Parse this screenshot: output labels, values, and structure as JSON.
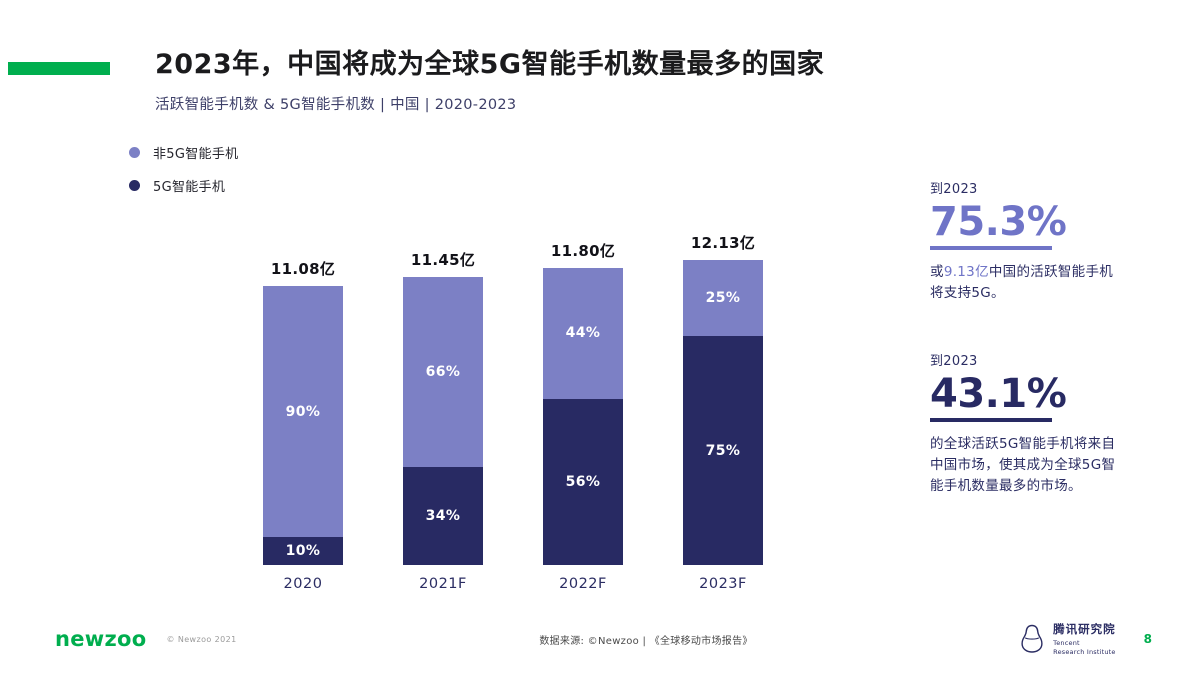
{
  "colors": {
    "green": "#00ae4e",
    "light_purple": "#7c80c5",
    "dark_navy": "#282a63",
    "stat_purple": "#6f74c7"
  },
  "header": {
    "title": "2023年，中国将成为全球5G智能手机数量最多的国家",
    "subtitle": "活跃智能手机数 & 5G智能手机数 | 中国 | 2020-2023"
  },
  "legend": [
    {
      "label": "非5G智能手机",
      "color": "#7c80c5"
    },
    {
      "label": "5G智能手机",
      "color": "#282a63"
    }
  ],
  "chart_data": {
    "type": "bar",
    "stacked": true,
    "title": "2023年，中国将成为全球5G智能手机数量最多的国家",
    "subtitle": "活跃智能手机数 & 5G智能手机数 | 中国 | 2020-2023",
    "categories": [
      "2020",
      "2021F",
      "2022F",
      "2023F"
    ],
    "totals": [
      11.08,
      11.45,
      11.8,
      12.13
    ],
    "total_labels": [
      "11.08亿",
      "11.45亿",
      "11.80亿",
      "12.13亿"
    ],
    "value_unit": "亿",
    "ylim": [
      0,
      12.13
    ],
    "legend_position": "top-left",
    "grid": false,
    "series": [
      {
        "name": "非5G智能手机",
        "color": "#7c80c5",
        "position": "top",
        "values_pct": [
          90,
          66,
          44,
          25
        ]
      },
      {
        "name": "5G智能手机",
        "color": "#282a63",
        "position": "bottom",
        "values_pct": [
          10,
          34,
          56,
          75
        ]
      }
    ]
  },
  "stats": [
    {
      "period": "到2023",
      "value": "75.3%",
      "color": "#6f74c7",
      "desc_prefix": "或",
      "desc_highlight": "9.13亿",
      "desc_rest": "中国的活跃智能手机将支持5G。"
    },
    {
      "period": "到2023",
      "value": "43.1%",
      "color": "#282a63",
      "desc": "的全球活跃5G智能手机将来自中国市场，使其成为全球5G智能手机数量最多的市场。"
    }
  ],
  "footer": {
    "brand": "newzoo",
    "copyright": "© Newzoo 2021",
    "source": "数据来源: ©Newzoo |  《全球移动市场报告》",
    "org_cn": "腾讯研究院",
    "org_en_1": "Tencent",
    "org_en_2": "Research Institute",
    "page": "8"
  }
}
